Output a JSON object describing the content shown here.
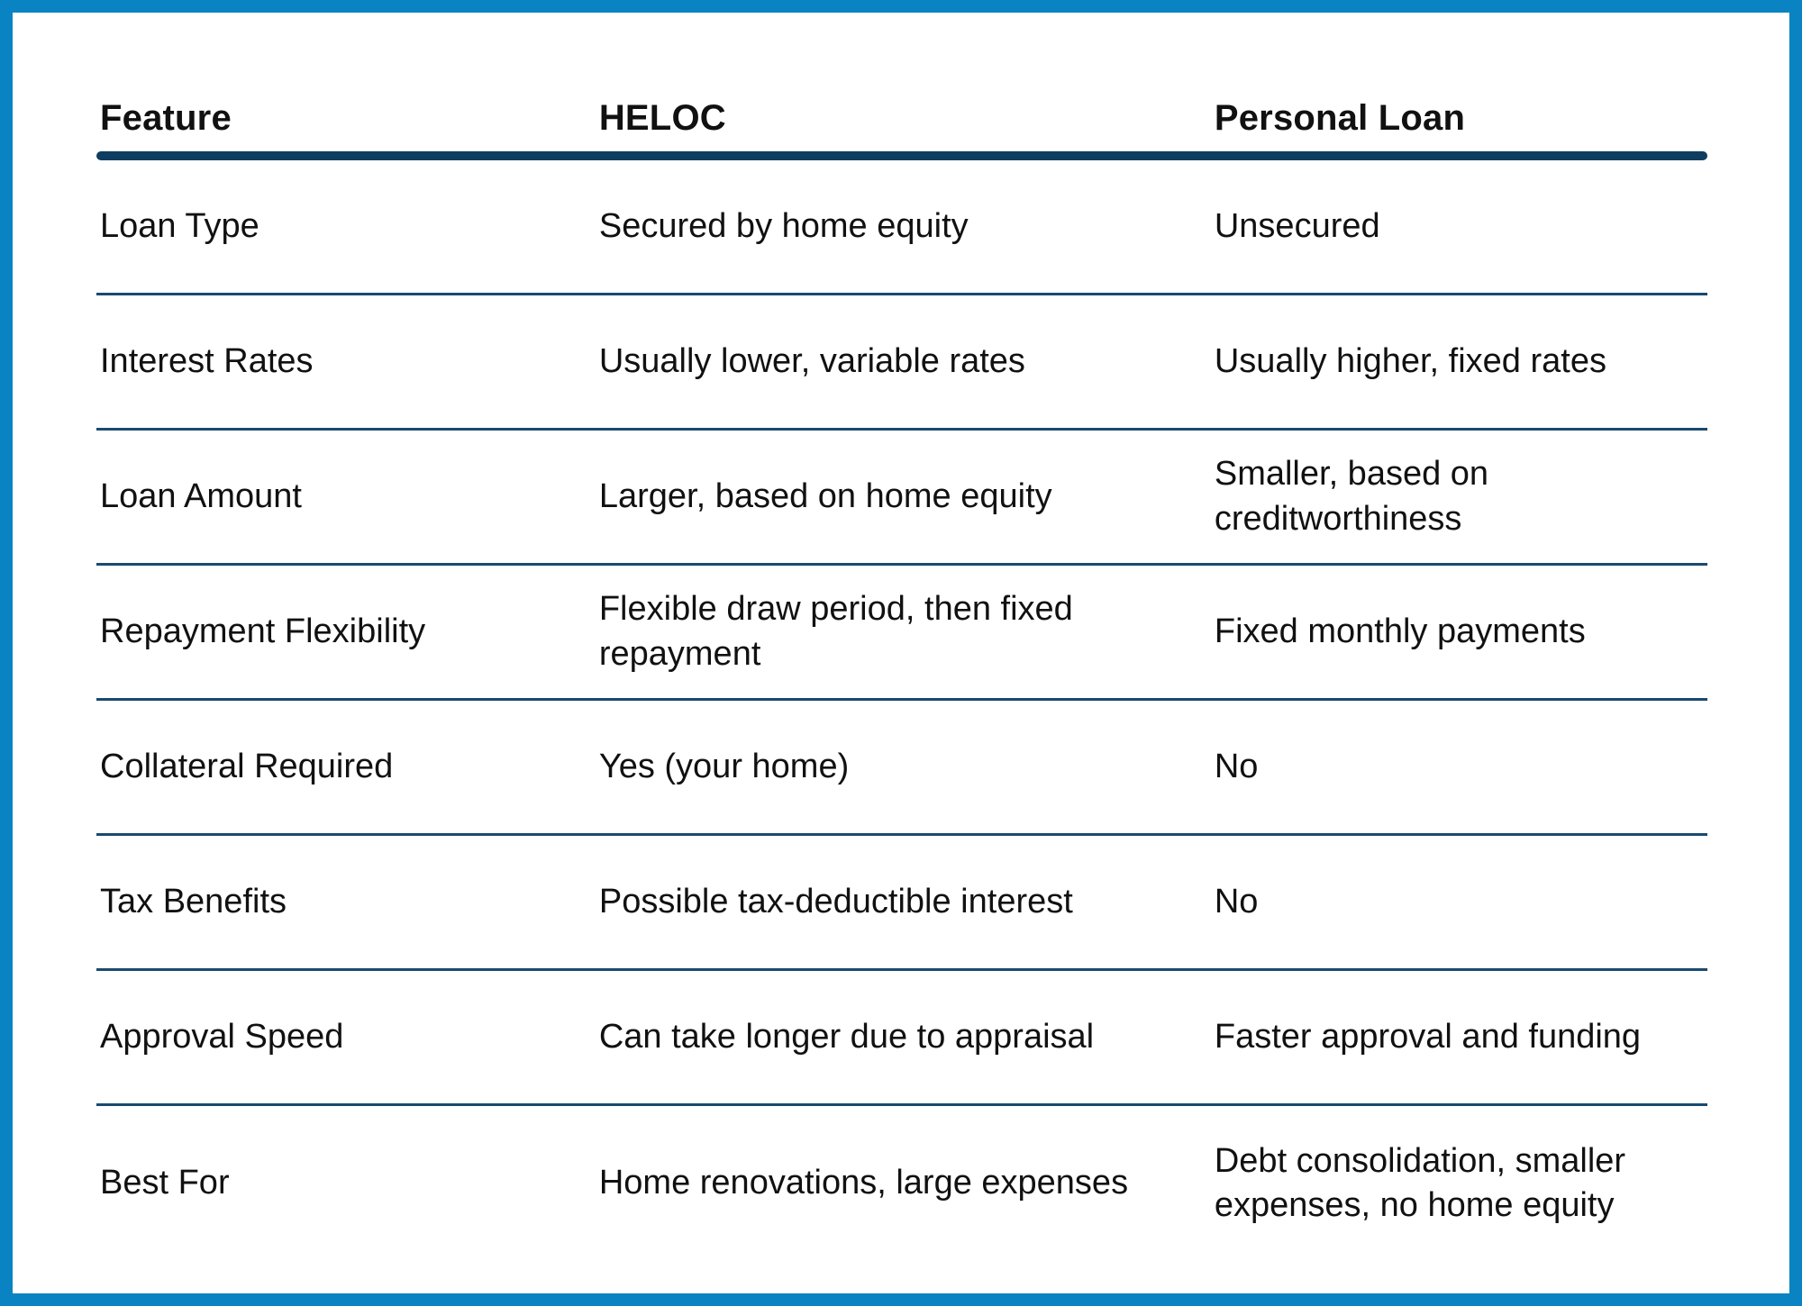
{
  "page": {
    "background_color": "#ffffff",
    "frame_color": "#0983c2",
    "header_rule_color": "#0e3d5f",
    "separator_color": "#1a4a70",
    "text_color": "#111111"
  },
  "table": {
    "columns": {
      "feature": "Feature",
      "heloc": "HELOC",
      "personal_loan": "Personal Loan"
    },
    "rows": [
      {
        "feature": "Loan Type",
        "heloc": "Secured by home equity",
        "personal_loan": "Unsecured"
      },
      {
        "feature": "Interest Rates",
        "heloc": "Usually lower, variable rates",
        "personal_loan": "Usually higher, fixed rates"
      },
      {
        "feature": "Loan Amount",
        "heloc": "Larger, based on home equity",
        "personal_loan": "Smaller, based on creditworthiness"
      },
      {
        "feature": "Repayment Flexibility",
        "heloc": "Flexible draw period, then fixed repayment",
        "personal_loan": "Fixed monthly payments"
      },
      {
        "feature": "Collateral Required",
        "heloc": "Yes (your home)",
        "personal_loan": "No"
      },
      {
        "feature": "Tax Benefits",
        "heloc": "Possible tax-deductible interest",
        "personal_loan": "No"
      },
      {
        "feature": "Approval Speed",
        "heloc": "Can take longer due to appraisal",
        "personal_loan": "Faster approval and funding"
      },
      {
        "feature": "Best For",
        "heloc": "Home renovations, large expenses",
        "personal_loan": "Debt consolidation, smaller expenses, no home equity"
      }
    ]
  }
}
